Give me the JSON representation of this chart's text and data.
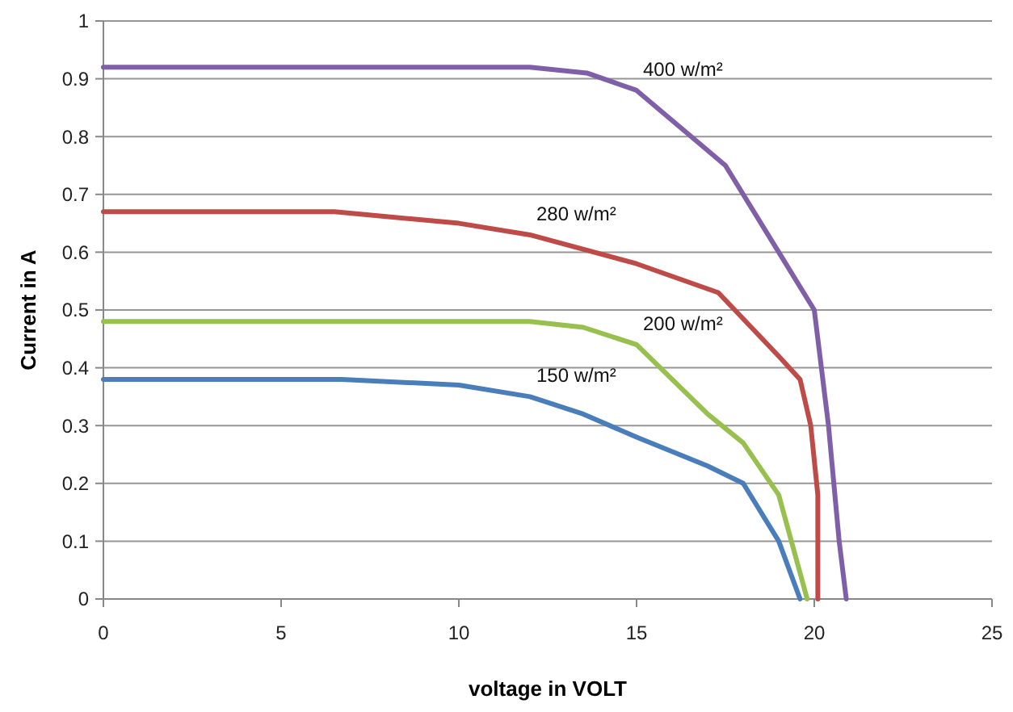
{
  "chart_data": {
    "type": "line",
    "xlabel": "voltage in VOLT",
    "ylabel": "Current in A",
    "xlim": [
      0,
      25
    ],
    "xticks": [
      0,
      5,
      10,
      15,
      20,
      25
    ],
    "ylim": [
      0,
      1
    ],
    "yticks": [
      0,
      0.1,
      0.2,
      0.3,
      0.4,
      0.5,
      0.6,
      0.7,
      0.8,
      0.9,
      1
    ],
    "grid": "y",
    "series": [
      {
        "name": "400 w/m²",
        "color": "#7f5fa8",
        "x": [
          0,
          12,
          13.6,
          15,
          17.5,
          19,
          20,
          20.4,
          20.7,
          20.9
        ],
        "values": [
          0.92,
          0.92,
          0.91,
          0.88,
          0.75,
          0.6,
          0.5,
          0.3,
          0.1,
          0
        ]
      },
      {
        "name": "280 w/m²",
        "color": "#be4b48",
        "x": [
          0,
          6.5,
          10,
          12,
          15,
          17.3,
          19,
          19.6,
          19.9,
          20.1,
          20.1
        ],
        "values": [
          0.67,
          0.67,
          0.65,
          0.63,
          0.58,
          0.53,
          0.42,
          0.38,
          0.3,
          0.18,
          0
        ]
      },
      {
        "name": "200 w/m²",
        "color": "#98c04f",
        "x": [
          0,
          12,
          13.5,
          15,
          17,
          18,
          19,
          19.8
        ],
        "values": [
          0.48,
          0.48,
          0.47,
          0.44,
          0.32,
          0.27,
          0.18,
          0
        ]
      },
      {
        "name": "150 w/m²",
        "color": "#4a7ebb",
        "x": [
          0,
          6.7,
          10,
          12,
          13.5,
          15,
          17,
          18,
          19,
          19.6
        ],
        "values": [
          0.38,
          0.38,
          0.37,
          0.35,
          0.32,
          0.28,
          0.23,
          0.2,
          0.1,
          0
        ]
      }
    ]
  }
}
